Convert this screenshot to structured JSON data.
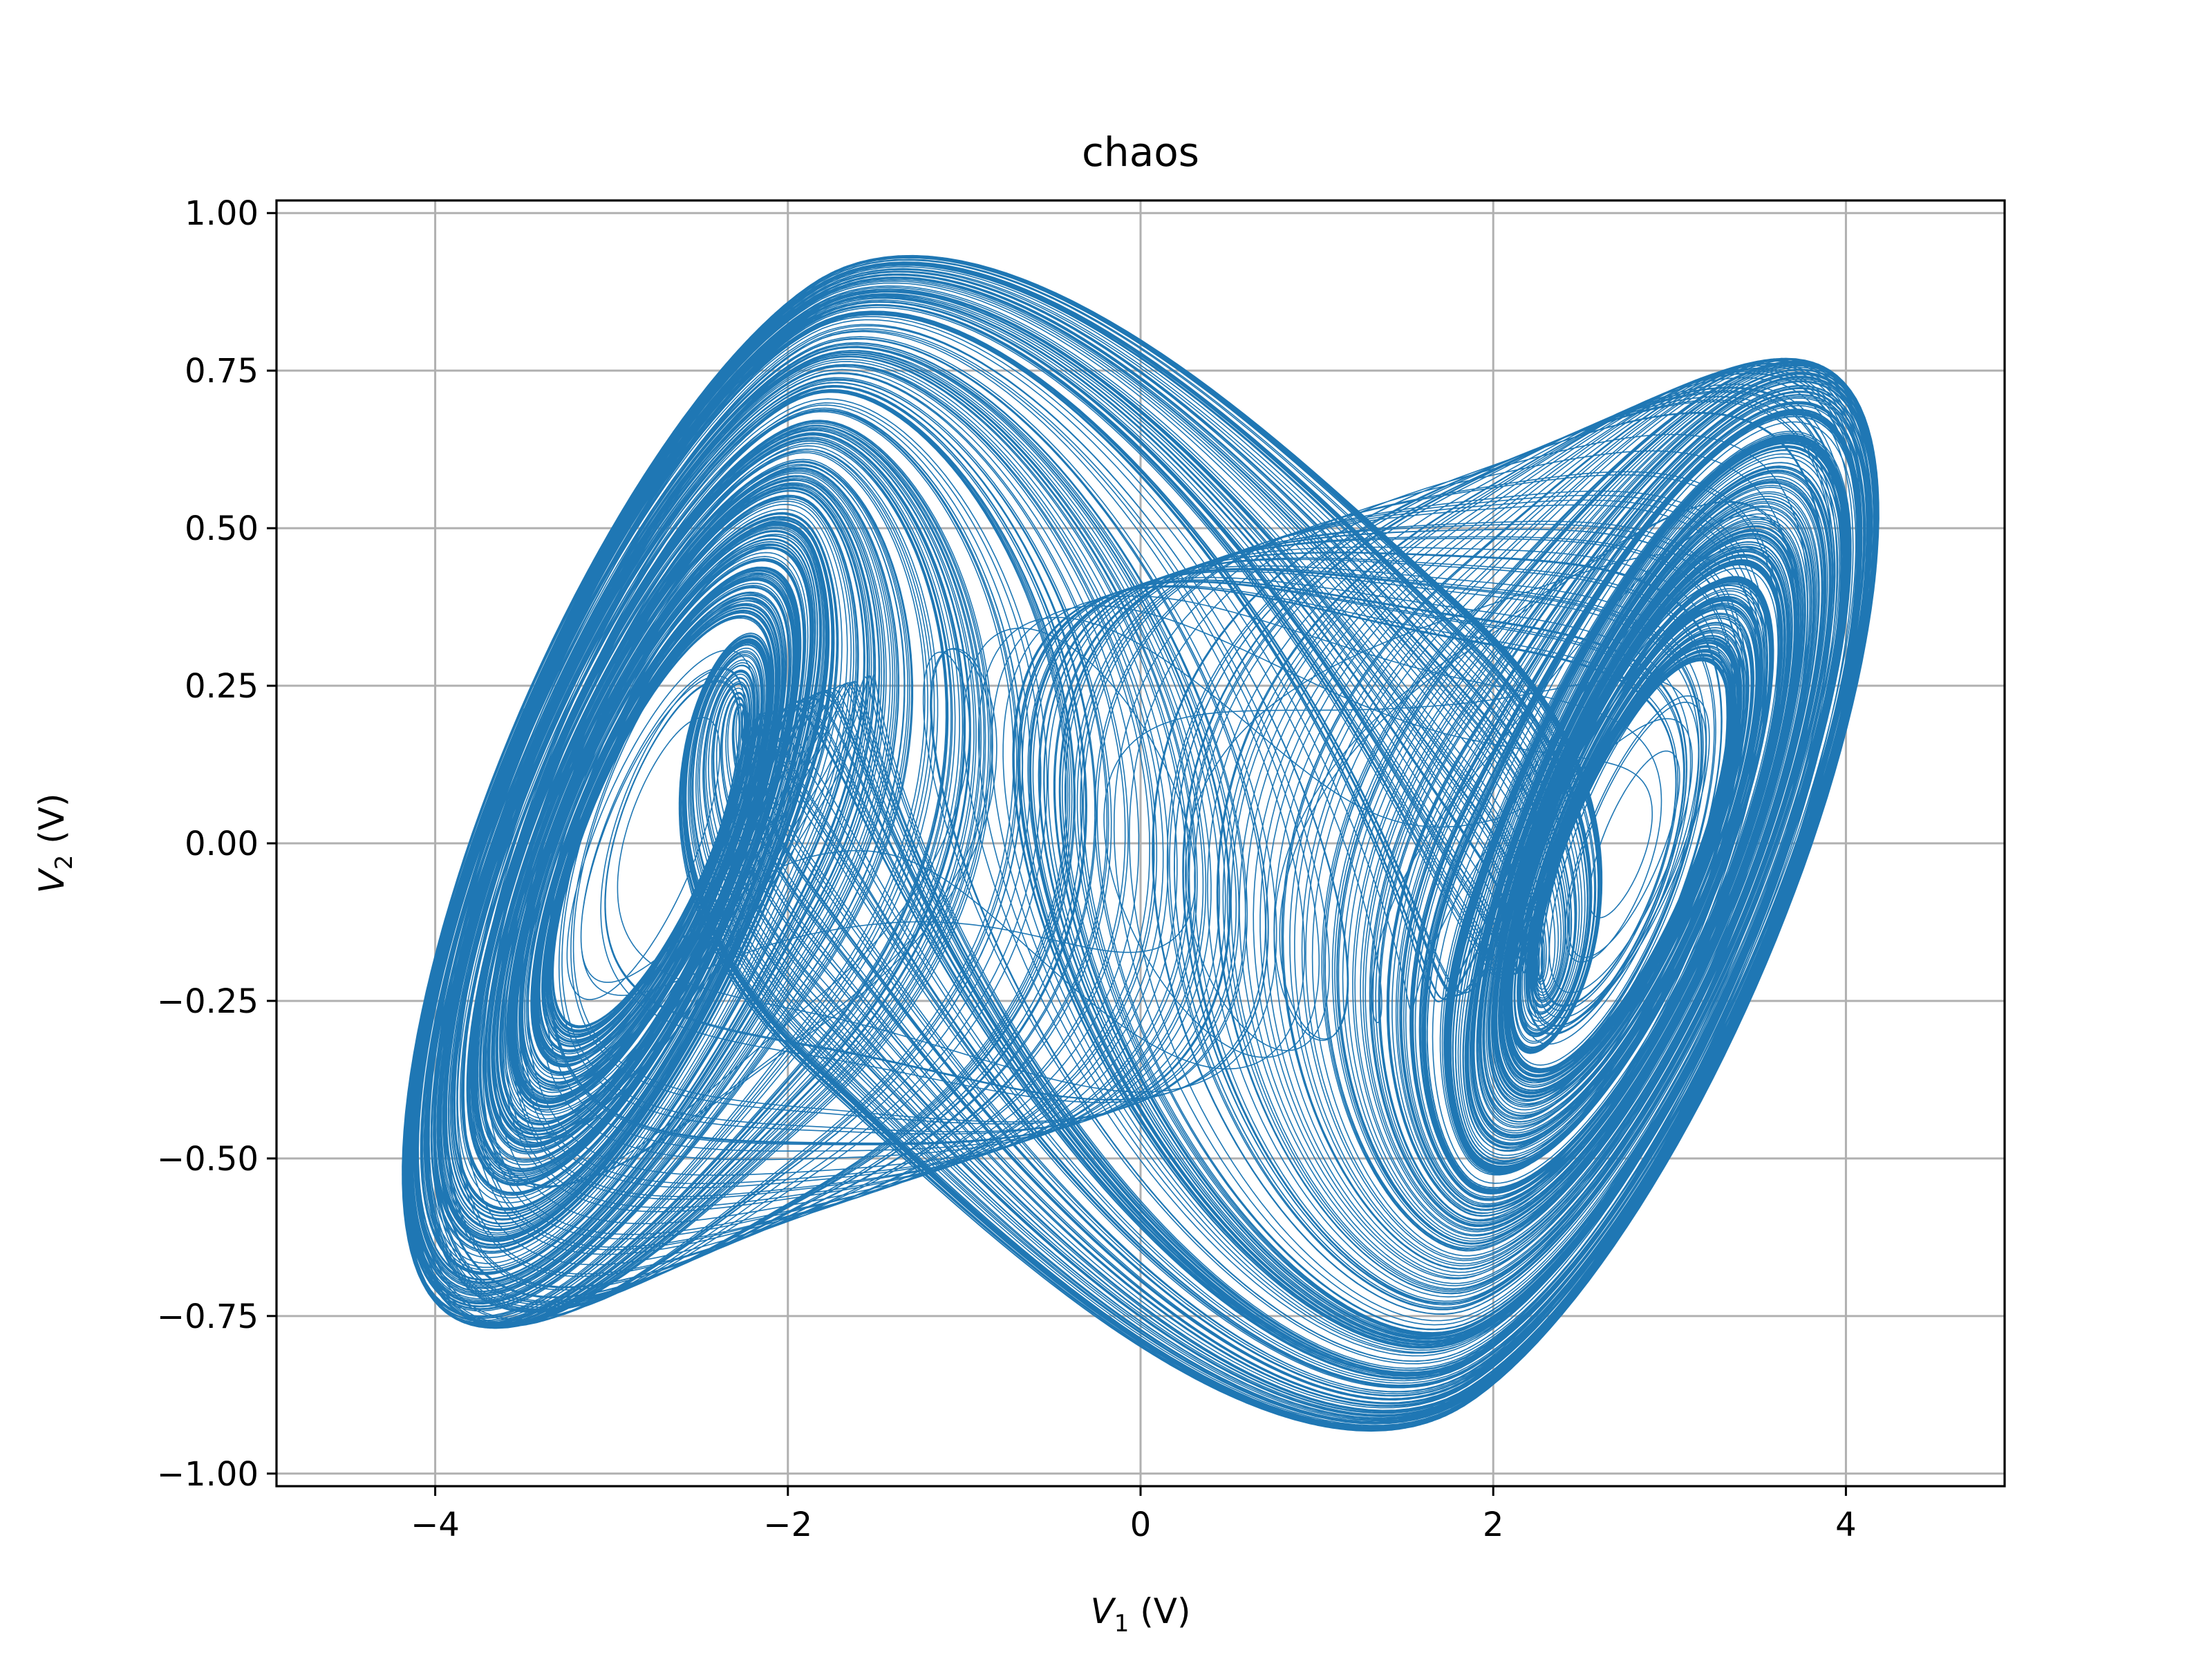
{
  "chart_data": {
    "type": "line",
    "title": "chaos",
    "xlabel": {
      "var": "V",
      "sub": "1",
      "unit": " (V)"
    },
    "ylabel": {
      "var": "V",
      "sub": "2",
      "unit": " (V)"
    },
    "xlim": [
      -4.9,
      4.9
    ],
    "ylim": [
      -1.02,
      1.02
    ],
    "xticks": [
      -4,
      -2,
      0,
      2,
      4
    ],
    "xtick_labels": [
      "−4",
      "−2",
      "0",
      "2",
      "4"
    ],
    "yticks": [
      -1.0,
      -0.75,
      -0.5,
      -0.25,
      0.0,
      0.25,
      0.5,
      0.75,
      1.0
    ],
    "ytick_labels": [
      "−1.00",
      "−0.75",
      "−0.50",
      "−0.25",
      "0.00",
      "0.25",
      "0.50",
      "0.75",
      "1.00"
    ],
    "grid": true,
    "line_color": "#1f77b4",
    "series": [
      {
        "description": "double-scroll chaotic attractor trajectory (Chua circuit), two spiral lobes centred near V1 = ±2.8 with inner equilibria near V1 = ±2",
        "x_range": [
          -4.42,
          4.45
        ],
        "y_range": [
          -0.92,
          0.92
        ],
        "lobe_centers": [
          [
            -2.8,
            0.0
          ],
          [
            2.8,
            0.0
          ]
        ],
        "inner_spiral_centers": [
          [
            -2.0,
            0.0
          ],
          [
            2.0,
            0.0
          ]
        ]
      }
    ]
  }
}
